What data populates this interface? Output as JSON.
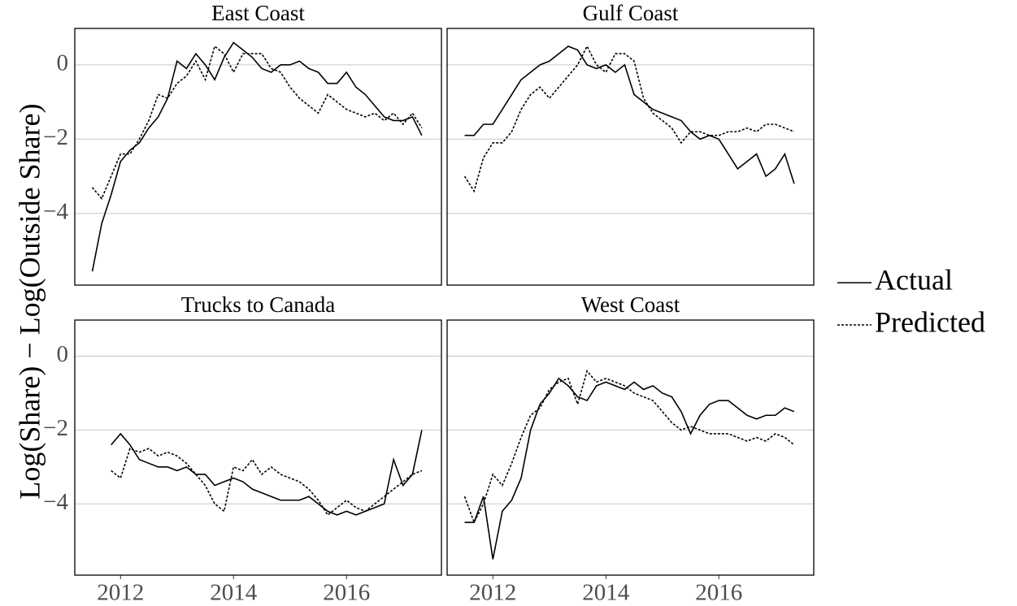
{
  "chart_data": {
    "type": "line",
    "y_label": "Log(Share) − Log(Outside Share)",
    "x": [
      2011.5,
      2011.667,
      2011.833,
      2012.0,
      2012.167,
      2012.333,
      2012.5,
      2012.667,
      2012.833,
      2013.0,
      2013.167,
      2013.333,
      2013.5,
      2013.667,
      2013.833,
      2014.0,
      2014.167,
      2014.333,
      2014.5,
      2014.667,
      2014.833,
      2015.0,
      2015.167,
      2015.333,
      2015.5,
      2015.667,
      2015.833,
      2016.0,
      2016.167,
      2016.333,
      2016.5,
      2016.667,
      2016.833,
      2017.0,
      2017.167,
      2017.333
    ],
    "xlim": [
      2011.19,
      2017.68
    ],
    "ylim": [
      -5.93,
      0.98
    ],
    "xticks": [
      2012,
      2014,
      2016
    ],
    "yticks": [
      {
        "value": -4,
        "label": "−4"
      },
      {
        "value": -2,
        "label": "−2"
      },
      0
    ],
    "grid": true,
    "legend_position": "right",
    "panels": [
      {
        "title": "East Coast",
        "series": [
          {
            "name": "Actual",
            "color": "#000000",
            "dash": "solid",
            "values": [
              -5.56,
              -4.27,
              -3.5,
              -2.6,
              -2.3,
              -2.1,
              -1.7,
              -1.4,
              -0.9,
              0.1,
              -0.1,
              0.3,
              0.0,
              -0.4,
              0.2,
              0.6,
              0.4,
              0.2,
              -0.1,
              -0.2,
              0.0,
              0.0,
              0.1,
              -0.1,
              -0.2,
              -0.5,
              -0.5,
              -0.2,
              -0.6,
              -0.8,
              -1.1,
              -1.4,
              -1.5,
              -1.5,
              -1.4,
              -1.9
            ]
          },
          {
            "name": "Predicted",
            "color": "#000000",
            "dash": "dotted",
            "values": [
              -3.3,
              -3.6,
              -3.0,
              -2.4,
              -2.4,
              -2.0,
              -1.5,
              -0.8,
              -0.9,
              -0.5,
              -0.3,
              0.1,
              -0.4,
              0.5,
              0.3,
              -0.2,
              0.3,
              0.3,
              0.3,
              -0.1,
              -0.2,
              -0.6,
              -0.9,
              -1.1,
              -1.3,
              -0.8,
              -1.0,
              -1.2,
              -1.3,
              -1.4,
              -1.3,
              -1.5,
              -1.3,
              -1.6,
              -1.3,
              -1.7
            ]
          }
        ]
      },
      {
        "title": "Gulf Coast",
        "series": [
          {
            "name": "Actual",
            "color": "#000000",
            "dash": "solid",
            "values": [
              -1.9,
              -1.9,
              -1.6,
              -1.6,
              -1.2,
              -0.8,
              -0.4,
              -0.2,
              0.0,
              0.1,
              0.3,
              0.5,
              0.4,
              0.0,
              -0.1,
              0.0,
              -0.2,
              0.0,
              -0.8,
              -1.0,
              -1.2,
              -1.3,
              -1.4,
              -1.5,
              -1.8,
              -2.0,
              -1.9,
              -2.0,
              -2.4,
              -2.8,
              -2.6,
              -2.4,
              -3.0,
              -2.8,
              -2.4,
              -3.2
            ]
          },
          {
            "name": "Predicted",
            "color": "#000000",
            "dash": "dotted",
            "values": [
              -3.0,
              -3.4,
              -2.5,
              -2.1,
              -2.1,
              -1.8,
              -1.2,
              -0.8,
              -0.6,
              -0.9,
              -0.6,
              -0.3,
              0.0,
              0.5,
              0.0,
              -0.2,
              0.3,
              0.3,
              0.1,
              -0.9,
              -1.3,
              -1.5,
              -1.7,
              -2.1,
              -1.8,
              -1.8,
              -1.9,
              -1.9,
              -1.8,
              -1.8,
              -1.7,
              -1.8,
              -1.6,
              -1.6,
              -1.7,
              -1.8
            ]
          }
        ]
      },
      {
        "title": "Trucks to Canada",
        "series": [
          {
            "name": "Actual",
            "color": "#000000",
            "dash": "solid",
            "values": [
              null,
              null,
              -2.4,
              -2.1,
              -2.4,
              -2.8,
              -2.9,
              -3.0,
              -3.0,
              -3.1,
              -3.0,
              -3.2,
              -3.2,
              -3.5,
              -3.4,
              -3.3,
              -3.4,
              -3.6,
              -3.7,
              -3.8,
              -3.9,
              -3.9,
              -3.9,
              -3.8,
              -4.0,
              -4.2,
              -4.3,
              -4.2,
              -4.3,
              -4.2,
              -4.1,
              -4.0,
              -2.8,
              -3.5,
              -3.2,
              -2.0
            ]
          },
          {
            "name": "Predicted",
            "color": "#000000",
            "dash": "dotted",
            "values": [
              null,
              null,
              -3.1,
              -3.3,
              -2.5,
              -2.6,
              -2.5,
              -2.7,
              -2.6,
              -2.7,
              -2.9,
              -3.2,
              -3.5,
              -4.0,
              -4.2,
              -3.0,
              -3.1,
              -2.8,
              -3.2,
              -3.0,
              -3.2,
              -3.3,
              -3.4,
              -3.6,
              -3.9,
              -4.3,
              -4.1,
              -3.9,
              -4.1,
              -4.2,
              -4.0,
              -3.8,
              -3.6,
              -3.4,
              -3.2,
              -3.1
            ]
          }
        ]
      },
      {
        "title": "West Coast",
        "series": [
          {
            "name": "Actual",
            "color": "#000000",
            "dash": "solid",
            "values": [
              -4.5,
              -4.5,
              -3.8,
              -5.5,
              -4.2,
              -3.9,
              -3.3,
              -2.0,
              -1.3,
              -1.0,
              -0.6,
              -0.8,
              -1.1,
              -1.2,
              -0.8,
              -0.7,
              -0.8,
              -0.9,
              -0.7,
              -0.9,
              -0.8,
              -1.0,
              -1.1,
              -1.5,
              -2.1,
              -1.6,
              -1.3,
              -1.2,
              -1.2,
              -1.4,
              -1.6,
              -1.7,
              -1.6,
              -1.6,
              -1.4,
              -1.5
            ]
          },
          {
            "name": "Predicted",
            "color": "#000000",
            "dash": "dotted",
            "values": [
              -3.8,
              -4.5,
              -4.0,
              -3.2,
              -3.5,
              -2.9,
              -2.2,
              -1.6,
              -1.4,
              -0.9,
              -0.7,
              -0.6,
              -1.3,
              -0.4,
              -0.7,
              -0.6,
              -0.7,
              -0.8,
              -1.0,
              -1.1,
              -1.2,
              -1.5,
              -1.8,
              -2.0,
              -1.9,
              -2.0,
              -2.1,
              -2.1,
              -2.1,
              -2.2,
              -2.3,
              -2.2,
              -2.3,
              -2.1,
              -2.2,
              -2.4
            ]
          }
        ]
      }
    ]
  }
}
